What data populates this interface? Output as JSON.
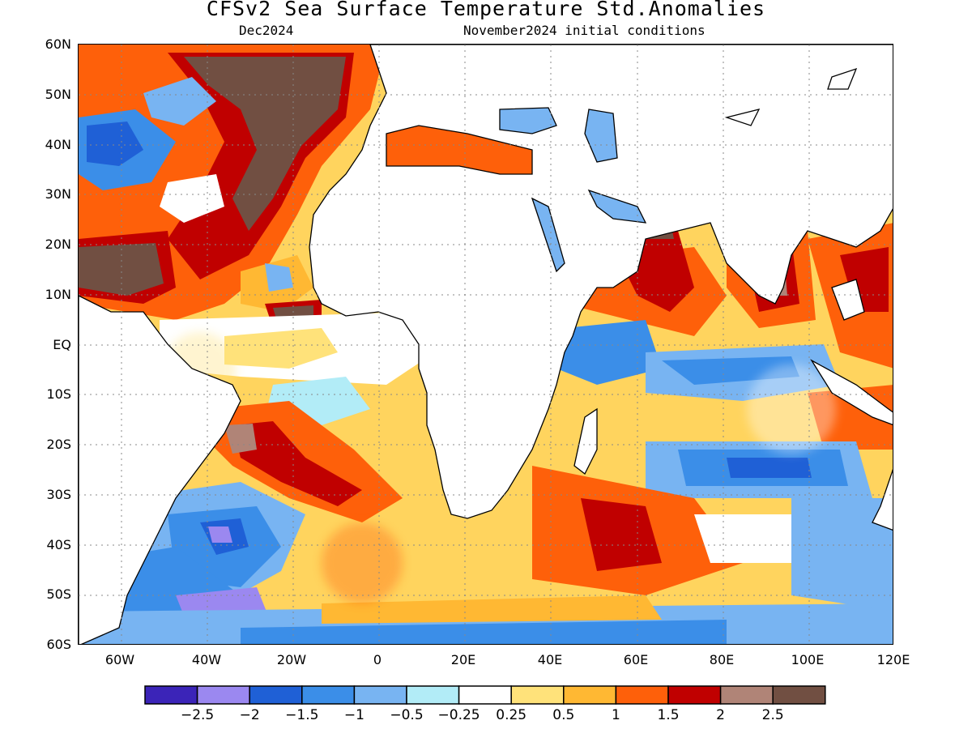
{
  "title": "CFSv2 Sea Surface Temperature Std.Anomalies",
  "subtitle_left": "Dec2024",
  "subtitle_right": "November2024 initial conditions",
  "lat_ticks": [
    "60N",
    "50N",
    "40N",
    "30N",
    "20N",
    "10N",
    "EQ",
    "10S",
    "20S",
    "30S",
    "40S",
    "50S",
    "60S"
  ],
  "lon_ticks": [
    "60W",
    "40W",
    "20W",
    "0",
    "20E",
    "40E",
    "60E",
    "80E",
    "100E",
    "120E"
  ],
  "colorbar": {
    "colors": [
      "#3b24b8",
      "#9b88f0",
      "#1f60d6",
      "#3b8ee8",
      "#78b4f2",
      "#b2ecf7",
      "#ffffff",
      "#ffe27a",
      "#ffb833",
      "#fe600a",
      "#c00000",
      "#b08477",
      "#714f42"
    ],
    "labels": [
      "−2.5",
      "−2",
      "−1.5",
      "−1",
      "−0.5",
      "−0.25",
      "0.25",
      "0.5",
      "1",
      "1.5",
      "2",
      "2.5"
    ]
  }
}
